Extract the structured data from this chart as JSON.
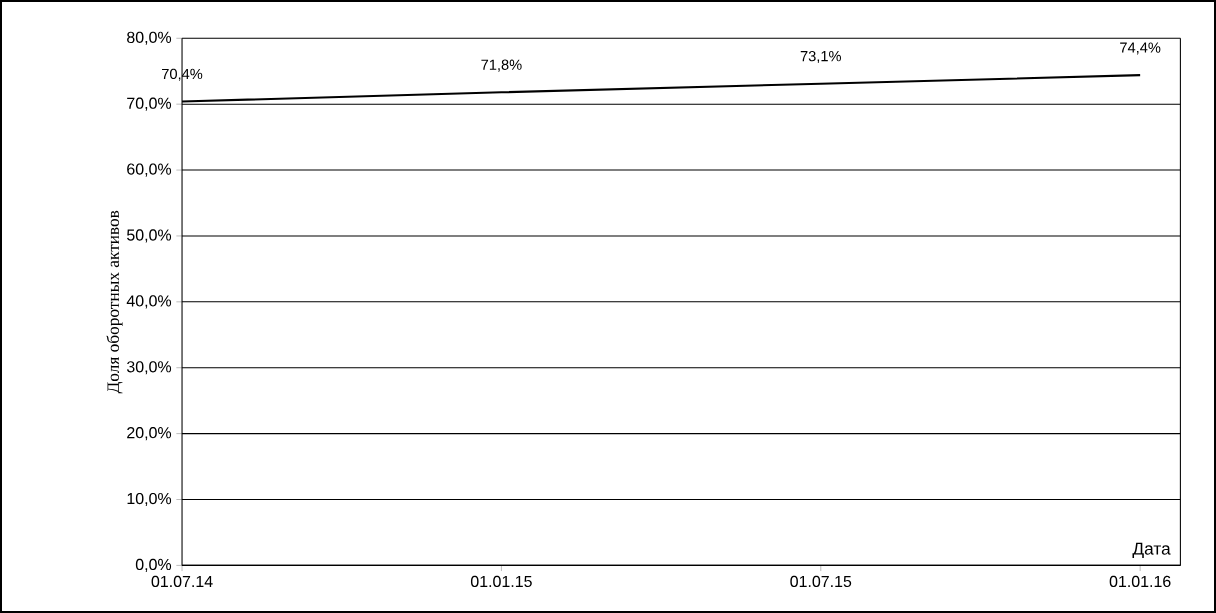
{
  "chart_data": {
    "type": "line",
    "xlabel": "Дата",
    "ylabel": "Доля оборотных активов",
    "categories": [
      "01.07.14",
      "01.01.15",
      "01.07.15",
      "01.01.16"
    ],
    "series": [
      {
        "color": "#000000",
        "values": [
          70.4,
          71.8,
          73.1,
          74.4
        ],
        "value_labels": [
          "70,4%",
          "71,8%",
          "73,1%",
          "74,4%"
        ]
      }
    ],
    "ylim": [
      0,
      80
    ],
    "yticks": [
      {
        "value": 0,
        "label": "0,0%"
      },
      {
        "value": 10,
        "label": "10,0%"
      },
      {
        "value": 20,
        "label": "20,0%"
      },
      {
        "value": 30,
        "label": "30,0%"
      },
      {
        "value": 40,
        "label": "40,0%"
      },
      {
        "value": 50,
        "label": "50,0%"
      },
      {
        "value": 60,
        "label": "60,0%"
      },
      {
        "value": 70,
        "label": "70,0%"
      },
      {
        "value": 80,
        "label": "80,0%"
      }
    ],
    "grid": "y",
    "marker": "none",
    "line_style": "solid"
  }
}
